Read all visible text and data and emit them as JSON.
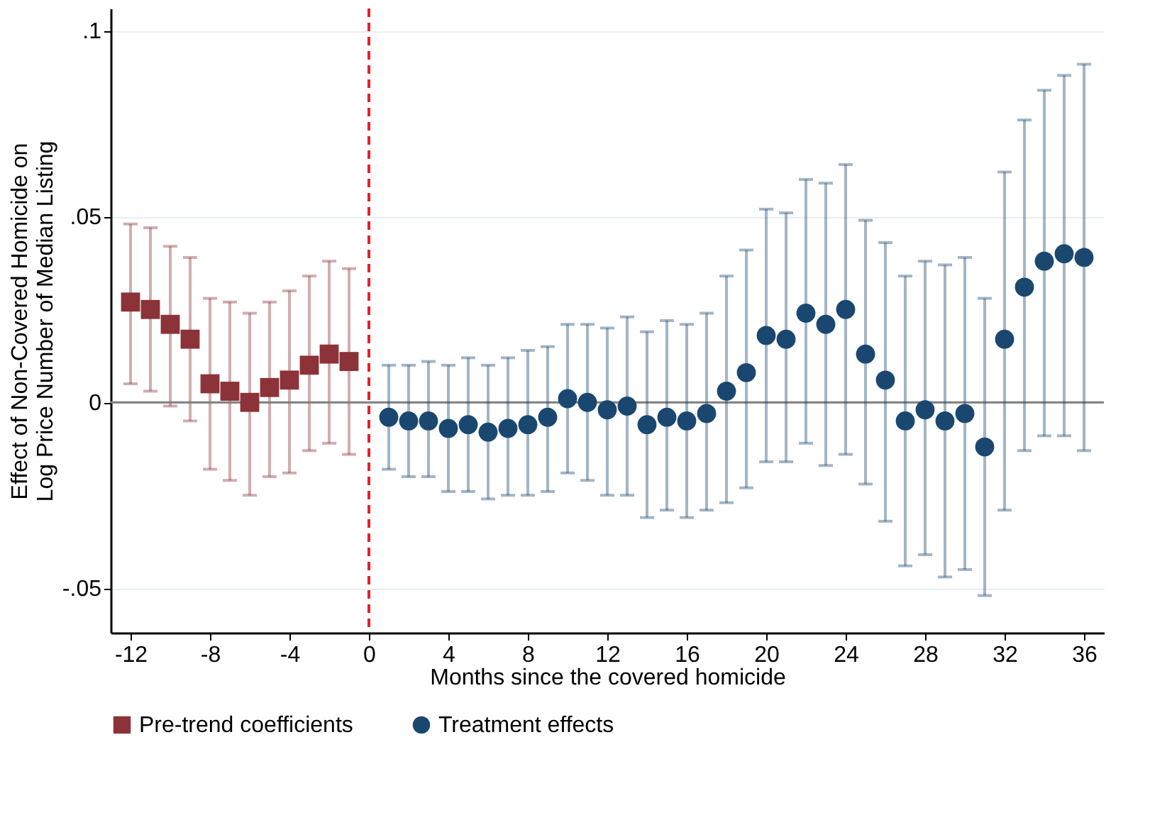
{
  "chart_data": {
    "type": "scatter",
    "xlabel": "Months since the covered homicide",
    "ylabel": "Effect of Non-Covered Homicide on\nLog Price Number of Median Listing",
    "series": [
      {
        "name": "Pre-trend coefficients",
        "color": "#8b3338",
        "marker": "square",
        "x": [
          -12,
          -11,
          -10,
          -9,
          -8,
          -7,
          -6,
          -5,
          -4,
          -3,
          -2,
          -1
        ],
        "values": [
          0.027,
          0.025,
          0.021,
          0.017,
          0.005,
          0.003,
          0.0,
          0.004,
          0.006,
          0.01,
          0.013,
          0.011
        ],
        "errors": [
          [
            0.005,
            0.048
          ],
          [
            0.003,
            0.047
          ],
          [
            -0.001,
            0.042
          ],
          [
            -0.005,
            0.039
          ],
          [
            -0.018,
            0.028
          ],
          [
            -0.021,
            0.027
          ],
          [
            -0.025,
            0.024
          ],
          [
            -0.02,
            0.027
          ],
          [
            -0.019,
            0.03
          ],
          [
            -0.013,
            0.034
          ],
          [
            -0.011,
            0.038
          ],
          [
            -0.014,
            0.036
          ]
        ]
      },
      {
        "name": "Treatment effects",
        "color": "#1a476f",
        "marker": "circle",
        "x": [
          1,
          2,
          3,
          4,
          5,
          6,
          7,
          8,
          9,
          10,
          11,
          12,
          13,
          14,
          15,
          16,
          17,
          18,
          19,
          20,
          21,
          22,
          23,
          24,
          25,
          26,
          27,
          28,
          29,
          30,
          31,
          32,
          33,
          34,
          35,
          36
        ],
        "values": [
          -0.004,
          -0.005,
          -0.005,
          -0.007,
          -0.006,
          -0.008,
          -0.007,
          -0.006,
          -0.004,
          0.001,
          0.0,
          -0.002,
          -0.001,
          -0.006,
          -0.004,
          -0.005,
          -0.003,
          0.003,
          0.008,
          0.018,
          0.017,
          0.024,
          0.021,
          0.025,
          0.013,
          0.006,
          -0.005,
          -0.002,
          -0.005,
          -0.003,
          -0.012,
          0.017,
          0.031,
          0.038,
          0.04,
          0.039
        ],
        "errors": [
          [
            -0.018,
            0.01
          ],
          [
            -0.02,
            0.01
          ],
          [
            -0.02,
            0.011
          ],
          [
            -0.024,
            0.01
          ],
          [
            -0.024,
            0.012
          ],
          [
            -0.026,
            0.01
          ],
          [
            -0.025,
            0.012
          ],
          [
            -0.025,
            0.014
          ],
          [
            -0.024,
            0.015
          ],
          [
            -0.019,
            0.021
          ],
          [
            -0.021,
            0.021
          ],
          [
            -0.025,
            0.02
          ],
          [
            -0.025,
            0.023
          ],
          [
            -0.031,
            0.019
          ],
          [
            -0.029,
            0.022
          ],
          [
            -0.031,
            0.021
          ],
          [
            -0.029,
            0.024
          ],
          [
            -0.027,
            0.034
          ],
          [
            -0.023,
            0.041
          ],
          [
            -0.016,
            0.052
          ],
          [
            -0.016,
            0.051
          ],
          [
            -0.011,
            0.06
          ],
          [
            -0.017,
            0.059
          ],
          [
            -0.014,
            0.064
          ],
          [
            -0.022,
            0.049
          ],
          [
            -0.032,
            0.043
          ],
          [
            -0.044,
            0.034
          ],
          [
            -0.041,
            0.038
          ],
          [
            -0.047,
            0.037
          ],
          [
            -0.045,
            0.039
          ],
          [
            -0.052,
            0.028
          ],
          [
            -0.029,
            0.062
          ],
          [
            -0.013,
            0.076
          ],
          [
            -0.009,
            0.084
          ],
          [
            -0.009,
            0.088
          ],
          [
            -0.013,
            0.091
          ]
        ]
      }
    ],
    "xlim": [
      -13,
      37
    ],
    "xticks": [
      -12,
      -8,
      -4,
      0,
      4,
      8,
      12,
      16,
      20,
      24,
      28,
      32,
      36
    ],
    "ylim": [
      -0.062,
      0.106
    ],
    "yticks": [
      {
        "value": -0.05,
        "label": "-.05"
      },
      {
        "value": 0,
        "label": "0"
      },
      {
        "value": 0.05,
        "label": ".05"
      },
      {
        "value": 0.1,
        "label": ".1"
      }
    ],
    "grid": "y",
    "legend": "bottom",
    "ref_lines": [
      {
        "axis": "y",
        "value": 0,
        "color": "#808080",
        "line_style": "solid"
      },
      {
        "axis": "x",
        "value": 0,
        "color": "#e8202a",
        "line_style": "dashed"
      }
    ]
  }
}
